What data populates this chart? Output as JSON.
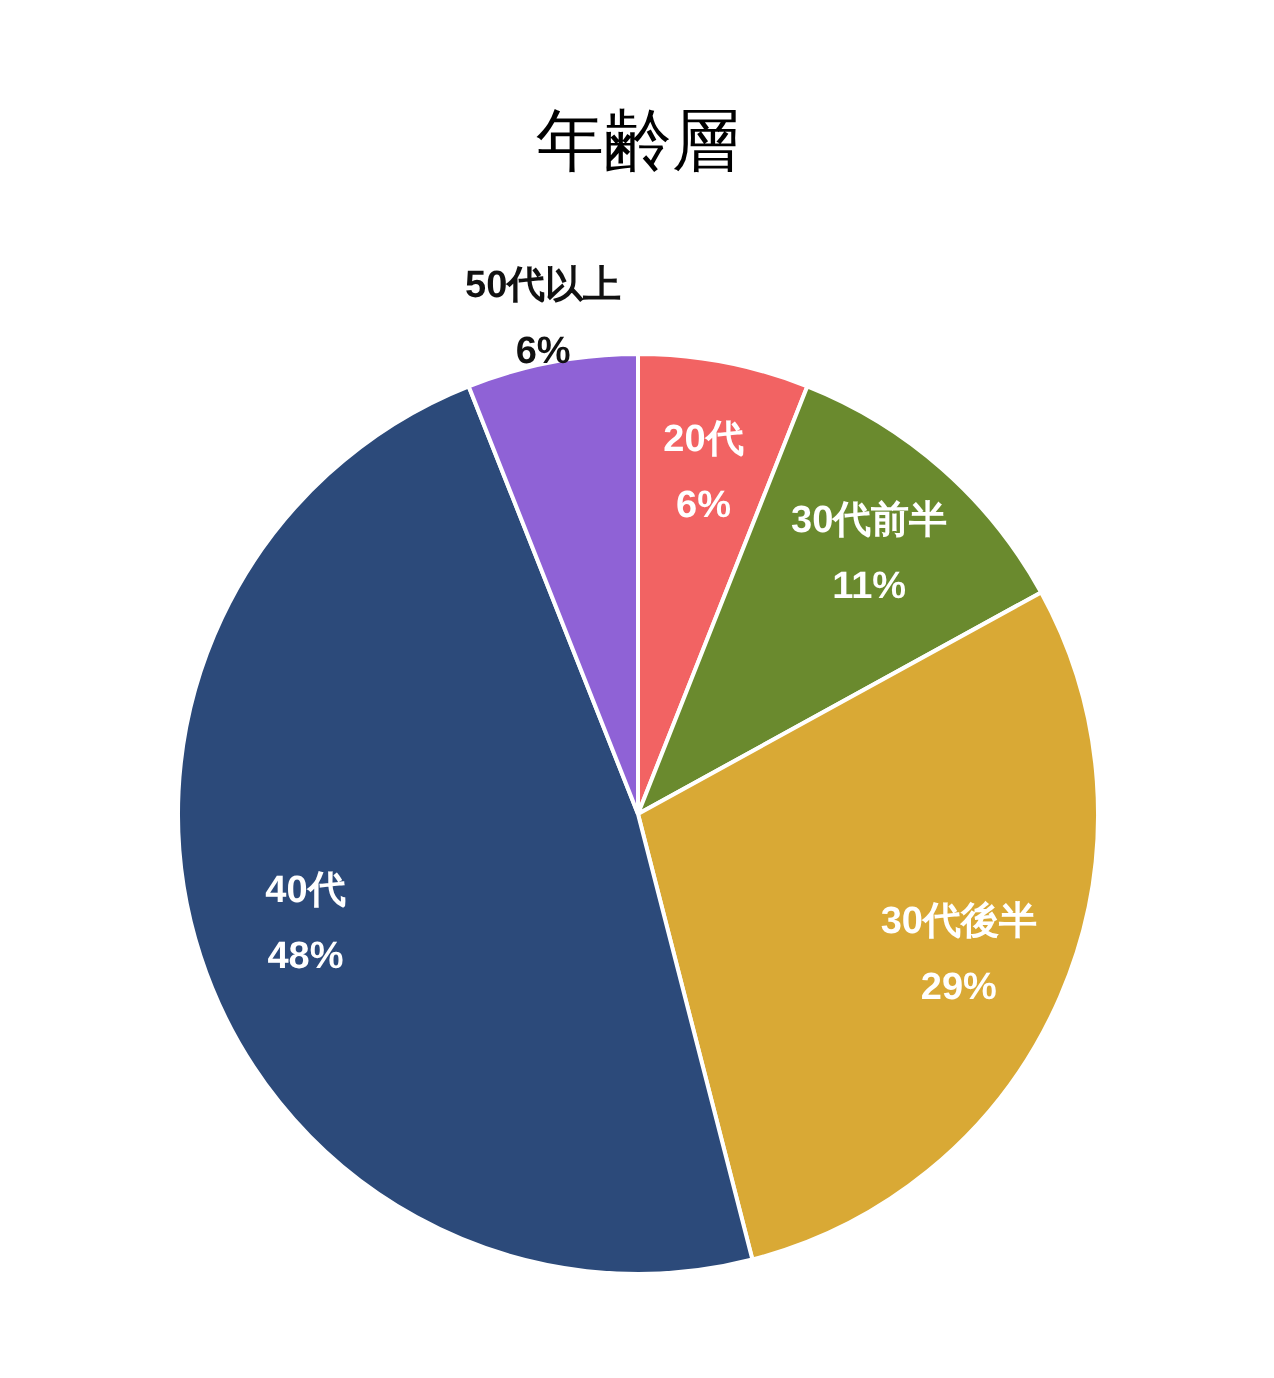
{
  "chart_data": {
    "type": "pie",
    "title": "年齢層",
    "categories": [
      "20代",
      "30代前半",
      "30代後半",
      "40代",
      "50代以上"
    ],
    "values": [
      6,
      11,
      29,
      48,
      6
    ],
    "value_labels": [
      "6%",
      "11%",
      "29%",
      "48%",
      "6%"
    ],
    "colors": [
      "#f26363",
      "#6a8a2e",
      "#d9a935",
      "#2c4a7a",
      "#8f62d6"
    ],
    "legend": false
  }
}
